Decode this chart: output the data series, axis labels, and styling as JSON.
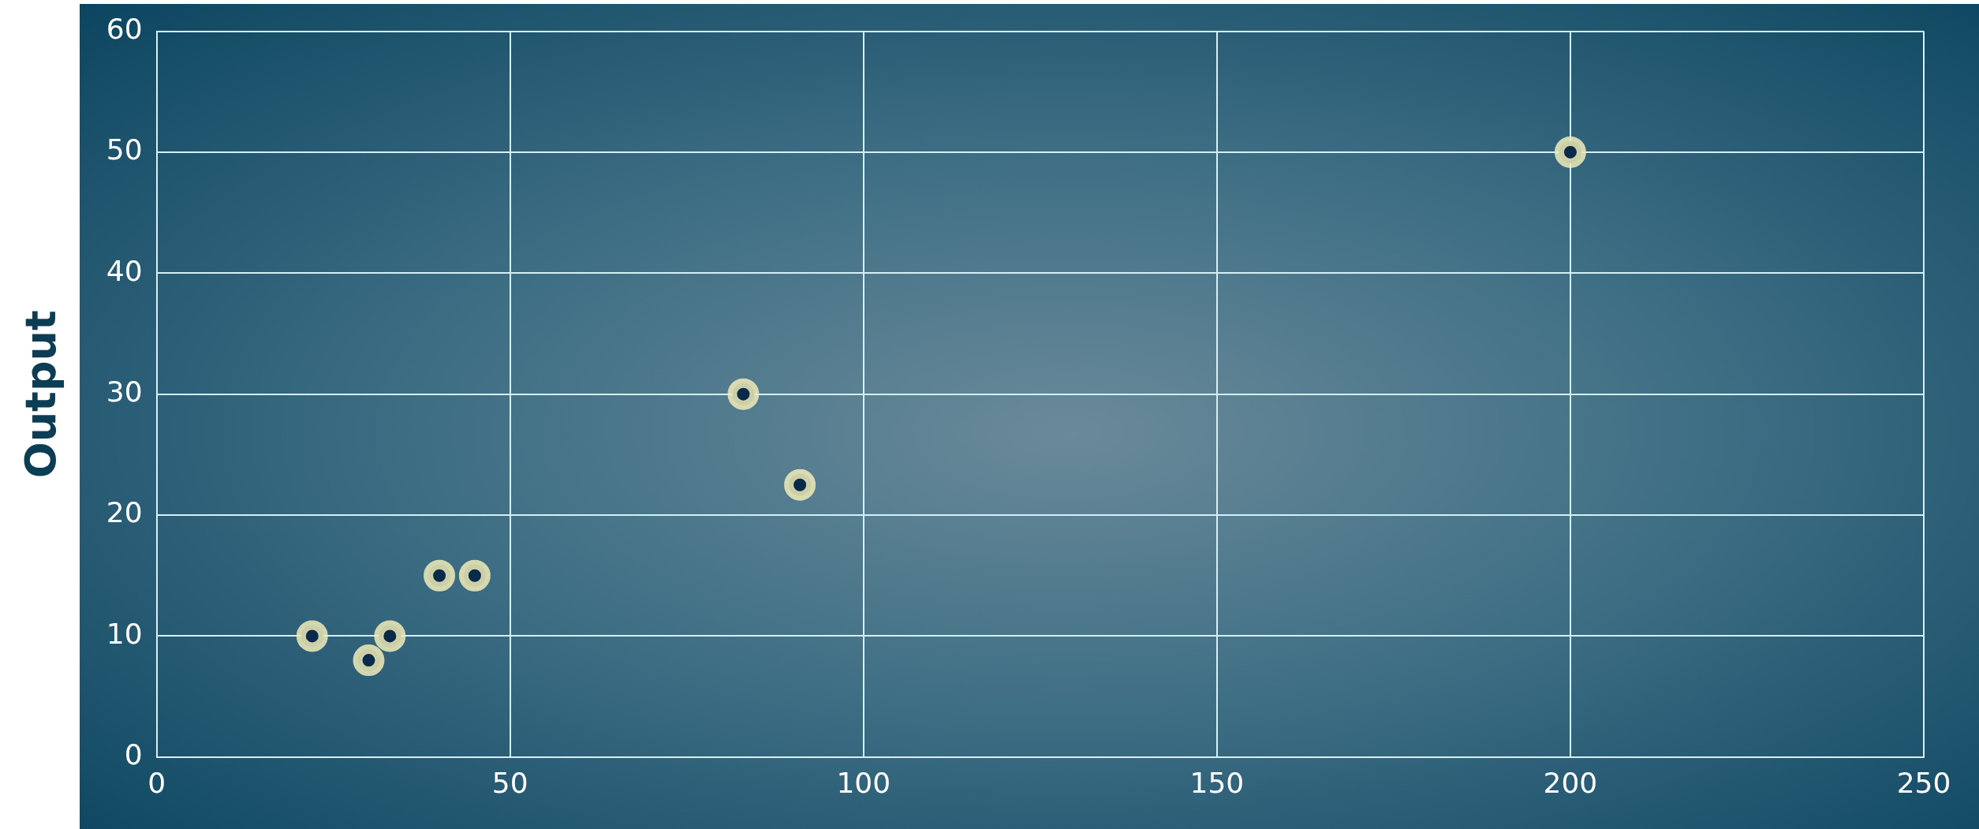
{
  "chart_data": {
    "type": "scatter",
    "ylabel": "Output",
    "x": [
      22,
      30,
      33,
      40,
      45,
      83,
      91,
      200
    ],
    "values": [
      10,
      8,
      10,
      15,
      15,
      30,
      22.5,
      50
    ],
    "color": "#0a2a4a",
    "xlim": [
      0,
      250
    ],
    "xticks": [
      0,
      50,
      100,
      150,
      200,
      250
    ],
    "ylim": [
      0,
      60
    ],
    "yticks": [
      0,
      10,
      20,
      30,
      40,
      50,
      60
    ],
    "grid": true,
    "marker": "circle"
  }
}
